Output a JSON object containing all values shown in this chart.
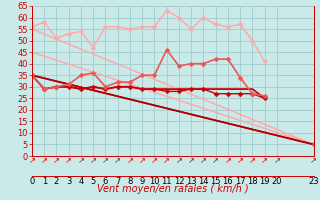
{
  "background_color": "#caeaea",
  "grid_color": "#a0cccc",
  "xlabel": "Vent moyen/en rafales ( km/h )",
  "xlim": [
    0,
    23
  ],
  "ylim": [
    0,
    65
  ],
  "yticks": [
    0,
    5,
    10,
    15,
    20,
    25,
    30,
    35,
    40,
    45,
    50,
    55,
    60,
    65
  ],
  "xtick_positions": [
    0,
    1,
    2,
    3,
    4,
    5,
    6,
    7,
    8,
    9,
    10,
    11,
    12,
    13,
    14,
    15,
    16,
    17,
    18,
    19,
    20,
    23
  ],
  "xtick_labels": [
    "0",
    "1",
    "2",
    "3",
    "4",
    "5",
    "6",
    "7",
    "8",
    "9",
    "10",
    "11",
    "12",
    "13",
    "14",
    "15",
    "16",
    "17",
    "18",
    "19",
    "20",
    "23"
  ],
  "lines": [
    {
      "x": [
        0,
        1,
        2,
        3,
        4,
        5,
        6,
        7,
        8,
        9,
        10,
        11,
        12,
        13,
        14,
        15,
        16,
        17,
        18,
        19,
        20,
        23
      ],
      "y": [
        56,
        58,
        51,
        53,
        54,
        47,
        56,
        56,
        55,
        56,
        56,
        63,
        60,
        55,
        60,
        57,
        56,
        57,
        50,
        41,
        null,
        5
      ],
      "color": "#ffaaaa",
      "linewidth": 1.1,
      "marker": "D",
      "markersize": 2.5,
      "zorder": 4
    },
    {
      "x": [
        0,
        23
      ],
      "y": [
        55,
        5
      ],
      "color": "#ffaaaa",
      "linewidth": 1.1,
      "marker": null,
      "markersize": 0,
      "zorder": 2
    },
    {
      "x": [
        0,
        23
      ],
      "y": [
        45,
        5
      ],
      "color": "#ffaaaa",
      "linewidth": 1.1,
      "marker": null,
      "markersize": 0,
      "zorder": 2
    },
    {
      "x": [
        0,
        1,
        2,
        3,
        4,
        5,
        6,
        7,
        8,
        9,
        10,
        11,
        12,
        13,
        14,
        15,
        16,
        17,
        18,
        19,
        20,
        23
      ],
      "y": [
        35,
        29,
        30,
        31,
        35,
        36,
        30,
        32,
        32,
        35,
        35,
        46,
        39,
        40,
        40,
        42,
        42,
        34,
        27,
        26,
        null,
        5
      ],
      "color": "#ee5555",
      "linewidth": 1.2,
      "marker": "D",
      "markersize": 2.5,
      "zorder": 5
    },
    {
      "x": [
        0,
        1,
        2,
        3,
        4,
        5,
        6,
        7,
        8,
        9,
        10,
        11,
        12,
        13,
        14,
        15,
        16,
        17,
        18,
        19,
        20,
        23
      ],
      "y": [
        35,
        29,
        30,
        30,
        29,
        30,
        29,
        30,
        30,
        29,
        29,
        29,
        29,
        29,
        29,
        29,
        29,
        29,
        29,
        25,
        null,
        5
      ],
      "color": "#cc0000",
      "linewidth": 1.3,
      "marker": null,
      "markersize": 0,
      "zorder": 3
    },
    {
      "x": [
        0,
        23
      ],
      "y": [
        35,
        5
      ],
      "color": "#cc0000",
      "linewidth": 1.3,
      "marker": null,
      "markersize": 0,
      "zorder": 3
    },
    {
      "x": [
        0,
        23
      ],
      "y": [
        35,
        5
      ],
      "color": "#aa0000",
      "linewidth": 1.0,
      "marker": null,
      "markersize": 0,
      "zorder": 3
    },
    {
      "x": [
        0,
        1,
        2,
        3,
        4,
        5,
        6,
        7,
        8,
        9,
        10,
        11,
        12,
        13,
        14,
        15,
        16,
        17,
        18,
        19,
        20,
        23
      ],
      "y": [
        35,
        29,
        30,
        30,
        29,
        30,
        29,
        30,
        30,
        29,
        29,
        28,
        28,
        29,
        29,
        27,
        27,
        27,
        27,
        25,
        null,
        5
      ],
      "color": "#cc0000",
      "linewidth": 1.0,
      "marker": "D",
      "markersize": 2.5,
      "zorder": 4
    }
  ],
  "tick_fontsize": 6,
  "xlabel_fontsize": 7,
  "tick_color": "#cc0000",
  "xlabel_color": "#cc0000",
  "spine_color": "#cc0000",
  "arrow_color": "#cc0000"
}
